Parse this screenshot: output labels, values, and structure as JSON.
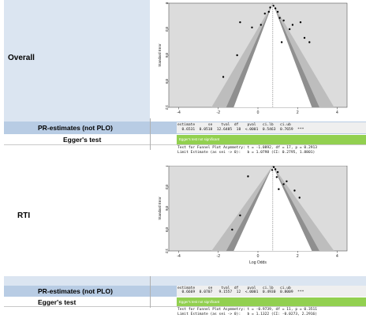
{
  "rows": {
    "overall": {
      "label": "Overall",
      "pr_label": "PR-estimates (not PLO)",
      "egger_label": "Egger's test",
      "est_header": "estimate      se    tval  df    pval   ci.lb   ci.ub",
      "est_values": "  0.6531  0.0518  12.6485  18  <.0001  0.5463  0.7659  ***",
      "egger_badge": "Egger's test not significant",
      "egger_line1": "Test for Funnel Plot Asymmetry: t = -1.0892, df = 17, p = 0.2913",
      "egger_line2": "Limit Estimate (as sei -> 0):   b = 1.0798 (CI: 0.2795, 1.8801)"
    },
    "rti": {
      "label": "RTI",
      "pr_label": "PR-estimates (not PLO)",
      "egger_label": "Egger's test",
      "est_header": "estimate      se    tval  df    pval   ci.lb   ci.ub",
      "est_values": "  0.6669  0.0707   9.1557  12  <.0001  0.4930  0.8009  ***",
      "egger_badge": "Egger's test not significant",
      "egger_line1": "Test for Funnel Plot Asymmetry: t = -0.9739, df = 11, p = 0.3511",
      "egger_line2": "Limit Estimate (as sei -> 0):   b = 1.1322 (CI: -0.0273, 2.2916)"
    }
  },
  "chart_data": [
    {
      "type": "scatter",
      "title": "",
      "xlabel": "",
      "ylabel": "Standard Error",
      "xlim": [
        -4.5,
        4.5
      ],
      "ylim": [
        1.2,
        0
      ],
      "xticks": [
        "-4",
        "-2",
        "0",
        "2",
        "4"
      ],
      "yticks": [
        "0",
        "0.3",
        "0.6",
        "0.9",
        "1.2"
      ],
      "center": 0.75,
      "points": [
        {
          "x": 0.78,
          "y": 0.03
        },
        {
          "x": 0.62,
          "y": 0.05
        },
        {
          "x": 0.88,
          "y": 0.06
        },
        {
          "x": 0.55,
          "y": 0.1
        },
        {
          "x": 1.0,
          "y": 0.1
        },
        {
          "x": 0.35,
          "y": 0.12
        },
        {
          "x": 1.1,
          "y": 0.17
        },
        {
          "x": 1.3,
          "y": 0.2
        },
        {
          "x": -0.9,
          "y": 0.22
        },
        {
          "x": 0.15,
          "y": 0.25
        },
        {
          "x": 1.75,
          "y": 0.25
        },
        {
          "x": 1.6,
          "y": 0.3
        },
        {
          "x": -0.3,
          "y": 0.28
        },
        {
          "x": 2.15,
          "y": 0.22
        },
        {
          "x": 2.35,
          "y": 0.4
        },
        {
          "x": 1.2,
          "y": 0.45
        },
        {
          "x": 2.6,
          "y": 0.45
        },
        {
          "x": -1.05,
          "y": 0.6
        },
        {
          "x": -1.75,
          "y": 0.85
        }
      ]
    },
    {
      "type": "scatter",
      "title": "",
      "xlabel": "Log Odds",
      "ylabel": "Standard Error",
      "xlim": [
        -4.5,
        4.5
      ],
      "ylim": [
        1.2,
        0
      ],
      "xticks": [
        "-4",
        "-2",
        "0",
        "2",
        "4"
      ],
      "yticks": [
        "0",
        "0.3",
        "0.6",
        "0.9",
        "1.2"
      ],
      "center": 0.75,
      "points": [
        {
          "x": 0.8,
          "y": 0.02
        },
        {
          "x": 0.88,
          "y": 0.05
        },
        {
          "x": 0.72,
          "y": 0.06
        },
        {
          "x": 1.0,
          "y": 0.09
        },
        {
          "x": 0.95,
          "y": 0.16
        },
        {
          "x": 1.45,
          "y": 0.22
        },
        {
          "x": 1.3,
          "y": 0.26
        },
        {
          "x": 1.05,
          "y": 0.33
        },
        {
          "x": -0.5,
          "y": 0.15
        },
        {
          "x": 1.85,
          "y": 0.35
        },
        {
          "x": 2.1,
          "y": 0.45
        },
        {
          "x": -0.9,
          "y": 0.7
        },
        {
          "x": -1.3,
          "y": 0.9
        }
      ]
    }
  ]
}
